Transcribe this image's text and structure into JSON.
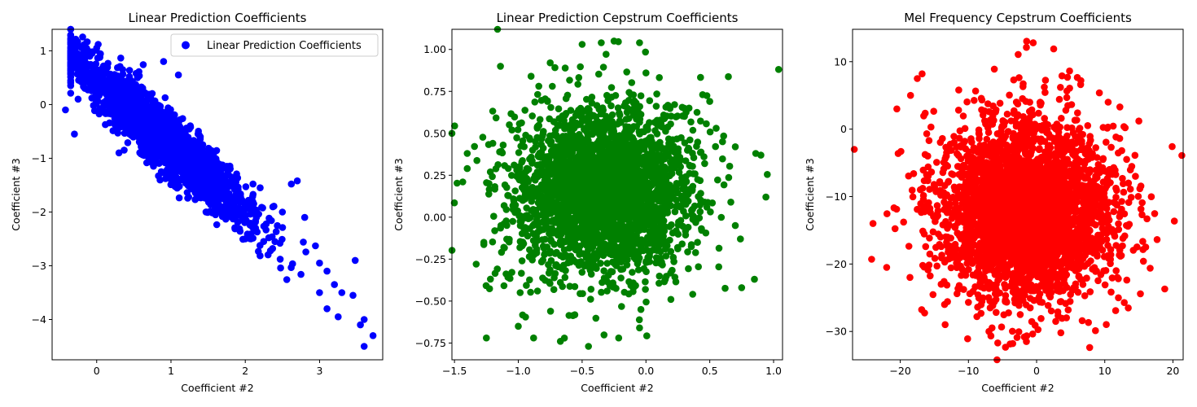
{
  "chart_data": [
    {
      "type": "scatter",
      "title": "Linear Prediction Coefficients",
      "xlabel": "Coefficient #2",
      "ylabel": "Coefficient #3",
      "xlim": [
        -0.6,
        3.85
      ],
      "ylim": [
        -4.75,
        1.4
      ],
      "xticks": [
        0,
        1,
        2,
        3
      ],
      "yticks": [
        -4,
        -3,
        -2,
        -1,
        0,
        1
      ],
      "xtick_labels": [
        "0",
        "1",
        "2",
        "3"
      ],
      "ytick_labels": [
        "−4",
        "−3",
        "−2",
        "−1",
        "0",
        "1"
      ],
      "grid": false,
      "legend": {
        "placement": "top-right",
        "label": "Linear Prediction Coefficients"
      },
      "color": "#0000ff",
      "distribution": {
        "n": 2200,
        "model": "correlated",
        "x_mean": 0.9,
        "x_sd": 0.6,
        "slope": -1.2,
        "intercept": 0.45,
        "y_noise_sd": 0.28
      },
      "points": [
        [
          -0.42,
          -0.1
        ],
        [
          0.0,
          1.05
        ],
        [
          0.02,
          1.12
        ],
        [
          0.1,
          0.7
        ],
        [
          0.2,
          0.55
        ],
        [
          0.35,
          0.65
        ],
        [
          0.55,
          0.5
        ],
        [
          0.9,
          0.8
        ],
        [
          1.1,
          0.55
        ],
        [
          1.7,
          -1.15
        ],
        [
          2.2,
          -1.55
        ],
        [
          2.5,
          -2.0
        ],
        [
          2.62,
          -1.48
        ],
        [
          2.7,
          -1.42
        ],
        [
          2.8,
          -2.1
        ],
        [
          3.0,
          -2.95
        ],
        [
          3.0,
          -3.5
        ],
        [
          3.1,
          -3.8
        ],
        [
          3.2,
          -3.35
        ],
        [
          3.3,
          -3.5
        ],
        [
          3.45,
          -3.55
        ],
        [
          3.48,
          -2.9
        ],
        [
          3.55,
          -4.1
        ],
        [
          3.6,
          -4.0
        ],
        [
          3.6,
          -4.5
        ],
        [
          3.72,
          -4.3
        ],
        [
          3.1,
          -3.1
        ],
        [
          3.25,
          -3.95
        ],
        [
          -0.3,
          -0.55
        ],
        [
          -0.25,
          0.1
        ],
        [
          0.3,
          -0.9
        ],
        [
          1.0,
          -1.35
        ],
        [
          1.6,
          -2.05
        ],
        [
          2.0,
          -2.5
        ],
        [
          2.4,
          -2.55
        ]
      ]
    },
    {
      "type": "scatter",
      "title": "Linear Prediction Cepstrum Coefficients",
      "xlabel": "Coefficient #2",
      "ylabel": "Coefficient #3",
      "xlim": [
        -1.52,
        1.07
      ],
      "ylim": [
        -0.85,
        1.12
      ],
      "xticks": [
        -1.5,
        -1.0,
        -0.5,
        0.0,
        0.5,
        1.0
      ],
      "yticks": [
        -0.75,
        -0.5,
        -0.25,
        0.0,
        0.25,
        0.5,
        0.75,
        1.0
      ],
      "xtick_labels": [
        "−1.5",
        "−1.0",
        "−0.5",
        "0.0",
        "0.5",
        "1.0"
      ],
      "ytick_labels": [
        "−0.75",
        "−0.50",
        "−0.25",
        "0.00",
        "0.25",
        "0.50",
        "0.75",
        "1.00"
      ],
      "grid": false,
      "color": "#008000",
      "distribution": {
        "n": 2600,
        "model": "gaussian",
        "x_mean": -0.33,
        "x_sd": 0.35,
        "y_mean": 0.15,
        "y_sd": 0.26
      },
      "points": [
        [
          -1.4,
          0.38
        ],
        [
          -1.4,
          0.29
        ],
        [
          -1.33,
          -0.28
        ],
        [
          -1.27,
          -0.15
        ],
        [
          -1.25,
          -0.72
        ],
        [
          -1.2,
          0.44
        ],
        [
          -1.05,
          0.52
        ],
        [
          -1.0,
          -0.65
        ],
        [
          -0.88,
          -0.72
        ],
        [
          -0.67,
          -0.74
        ],
        [
          -0.45,
          -0.77
        ],
        [
          -0.05,
          -0.66
        ],
        [
          0.75,
          -0.42
        ],
        [
          0.85,
          -0.37
        ],
        [
          0.94,
          0.12
        ],
        [
          0.86,
          0.38
        ],
        [
          0.9,
          0.37
        ],
        [
          0.7,
          0.42
        ],
        [
          0.6,
          0.45
        ],
        [
          -0.5,
          1.03
        ],
        [
          -0.35,
          1.04
        ],
        [
          -0.25,
          1.05
        ],
        [
          -0.05,
          1.04
        ],
        [
          0.0,
          0.86
        ],
        [
          0.3,
          0.65
        ],
        [
          0.5,
          0.69
        ],
        [
          -0.9,
          0.84
        ],
        [
          -0.75,
          0.92
        ],
        [
          0.55,
          0.53
        ],
        [
          0.7,
          -0.05
        ],
        [
          0.74,
          -0.13
        ]
      ]
    },
    {
      "type": "scatter",
      "title": "Mel Frequency Cepstrum Coefficients",
      "xlabel": "Coefficient #2",
      "ylabel": "Coefficient #3",
      "xlim": [
        -27.0,
        21.5
      ],
      "ylim": [
        -34.2,
        14.8
      ],
      "xticks": [
        -20,
        -10,
        0,
        10,
        20
      ],
      "yticks": [
        -30,
        -20,
        -10,
        0,
        10
      ],
      "xtick_labels": [
        "−20",
        "−10",
        "0",
        "10",
        "20"
      ],
      "ytick_labels": [
        "−30",
        "−20",
        "−10",
        "0",
        "10"
      ],
      "grid": false,
      "color": "#ff0000",
      "distribution": {
        "n": 3200,
        "model": "gaussian",
        "x_mean": -1.5,
        "x_sd": 6.2,
        "y_mean": -12.0,
        "y_sd": 6.6
      },
      "points": [
        [
          -0.5,
          12.8
        ],
        [
          -6.2,
          8.9
        ],
        [
          -16.8,
          8.2
        ],
        [
          -17.5,
          7.5
        ],
        [
          6.5,
          7.2
        ],
        [
          -24.2,
          -19.3
        ],
        [
          -24.0,
          -14.0
        ],
        [
          -22.0,
          -20.5
        ],
        [
          18.8,
          -23.7
        ],
        [
          16.0,
          -17.5
        ],
        [
          16.2,
          -13.3
        ],
        [
          15.0,
          1.2
        ],
        [
          13.0,
          0.2
        ],
        [
          -3.5,
          -31.8
        ],
        [
          -1.5,
          -31.5
        ],
        [
          -5.7,
          -31.7
        ],
        [
          -13.5,
          -26.0
        ],
        [
          -14.0,
          -23.0
        ],
        [
          12.0,
          -25.0
        ],
        [
          3.5,
          6.2
        ],
        [
          -2.0,
          6.3
        ],
        [
          10.5,
          4.0
        ],
        [
          -20.5,
          3.0
        ],
        [
          -18.5,
          5.0
        ],
        [
          14.5,
          -7.0
        ]
      ]
    }
  ]
}
